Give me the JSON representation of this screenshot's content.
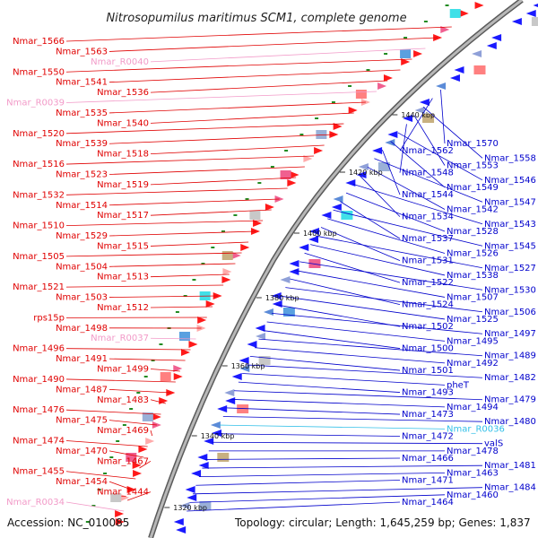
{
  "title": "Nitrosopumilus maritimus SCM1, complete genome",
  "footer": {
    "accession": "Accession: NC_010085",
    "summary": "Topology: circular; Length: 1,645,259 bp; Genes: 1,837"
  },
  "colors": {
    "background": "#ffffff",
    "backbone": "#8c8c8c",
    "backbone_shadow": "#5a5a5a",
    "forward_label": "#e00000",
    "reverse_label": "#0000cc",
    "rna_label_pink": "#f29ac8",
    "rna_label_cyan": "#33c0e8",
    "cds_forward": "#ff1a1a",
    "cds_reverse": "#1a1aff",
    "gc_skew": "#228b22"
  },
  "kbp_ticks": [
    "1320 kbp",
    "1340 kbp",
    "1360 kbp",
    "1380 kbp",
    "1400 kbp",
    "1420 kbp",
    "1440 kbp"
  ],
  "left_labels": [
    {
      "text": "Nmar_1566",
      "kind": "cds"
    },
    {
      "text": "Nmar_1563",
      "kind": "cds"
    },
    {
      "text": "Nmar_R0040",
      "kind": "rna"
    },
    {
      "text": "Nmar_1550",
      "kind": "cds"
    },
    {
      "text": "Nmar_1541",
      "kind": "cds"
    },
    {
      "text": "Nmar_1536",
      "kind": "cds"
    },
    {
      "text": "Nmar_R0039",
      "kind": "rna"
    },
    {
      "text": "Nmar_1535",
      "kind": "cds"
    },
    {
      "text": "Nmar_1540",
      "kind": "cds"
    },
    {
      "text": "Nmar_1520",
      "kind": "cds"
    },
    {
      "text": "Nmar_1539",
      "kind": "cds"
    },
    {
      "text": "Nmar_1518",
      "kind": "cds"
    },
    {
      "text": "Nmar_1516",
      "kind": "cds"
    },
    {
      "text": "Nmar_1523",
      "kind": "cds"
    },
    {
      "text": "Nmar_1519",
      "kind": "cds"
    },
    {
      "text": "Nmar_1532",
      "kind": "cds"
    },
    {
      "text": "Nmar_1514",
      "kind": "cds"
    },
    {
      "text": "Nmar_1517",
      "kind": "cds"
    },
    {
      "text": "Nmar_1510",
      "kind": "cds"
    },
    {
      "text": "Nmar_1529",
      "kind": "cds"
    },
    {
      "text": "Nmar_1515",
      "kind": "cds"
    },
    {
      "text": "Nmar_1505",
      "kind": "cds"
    },
    {
      "text": "Nmar_1504",
      "kind": "cds"
    },
    {
      "text": "Nmar_1513",
      "kind": "cds"
    },
    {
      "text": "Nmar_1521",
      "kind": "cds"
    },
    {
      "text": "Nmar_1503",
      "kind": "cds"
    },
    {
      "text": "Nmar_1512",
      "kind": "cds"
    },
    {
      "text": "rps15p",
      "kind": "cds"
    },
    {
      "text": "Nmar_1498",
      "kind": "cds"
    },
    {
      "text": "Nmar_R0037",
      "kind": "rna"
    },
    {
      "text": "Nmar_1496",
      "kind": "cds"
    },
    {
      "text": "Nmar_1491",
      "kind": "cds"
    },
    {
      "text": "Nmar_1499",
      "kind": "cds"
    },
    {
      "text": "Nmar_1490",
      "kind": "cds"
    },
    {
      "text": "Nmar_1487",
      "kind": "cds"
    },
    {
      "text": "Nmar_1483",
      "kind": "cds"
    },
    {
      "text": "Nmar_1476",
      "kind": "cds"
    },
    {
      "text": "Nmar_1475",
      "kind": "cds"
    },
    {
      "text": "Nmar_1469",
      "kind": "cds"
    },
    {
      "text": "Nmar_1474",
      "kind": "cds"
    },
    {
      "text": "Nmar_1470",
      "kind": "cds"
    },
    {
      "text": "Nmar_1467",
      "kind": "cds"
    },
    {
      "text": "Nmar_1455",
      "kind": "cds"
    },
    {
      "text": "Nmar_1454",
      "kind": "cds"
    },
    {
      "text": "Nmar_1444",
      "kind": "cds"
    },
    {
      "text": "Nmar_R0034",
      "kind": "rna"
    }
  ],
  "right_labels": [
    {
      "text": "Nmar_1570",
      "kind": "cds"
    },
    {
      "text": "Nmar_1562",
      "kind": "cds"
    },
    {
      "text": "Nmar_1558",
      "kind": "cds"
    },
    {
      "text": "Nmar_1553",
      "kind": "cds"
    },
    {
      "text": "Nmar_1548",
      "kind": "cds"
    },
    {
      "text": "Nmar_1546",
      "kind": "cds"
    },
    {
      "text": "Nmar_1549",
      "kind": "cds"
    },
    {
      "text": "Nmar_1544",
      "kind": "cds"
    },
    {
      "text": "Nmar_1547",
      "kind": "cds"
    },
    {
      "text": "Nmar_1542",
      "kind": "cds"
    },
    {
      "text": "Nmar_1534",
      "kind": "cds"
    },
    {
      "text": "Nmar_1543",
      "kind": "cds"
    },
    {
      "text": "Nmar_1528",
      "kind": "cds"
    },
    {
      "text": "Nmar_1537",
      "kind": "cds"
    },
    {
      "text": "Nmar_1545",
      "kind": "cds"
    },
    {
      "text": "Nmar_1526",
      "kind": "cds"
    },
    {
      "text": "Nmar_1531",
      "kind": "cds"
    },
    {
      "text": "Nmar_1527",
      "kind": "cds"
    },
    {
      "text": "Nmar_1538",
      "kind": "cds"
    },
    {
      "text": "Nmar_1522",
      "kind": "cds"
    },
    {
      "text": "Nmar_1530",
      "kind": "cds"
    },
    {
      "text": "Nmar_1507",
      "kind": "cds"
    },
    {
      "text": "Nmar_1524",
      "kind": "cds"
    },
    {
      "text": "Nmar_1506",
      "kind": "cds"
    },
    {
      "text": "Nmar_1525",
      "kind": "cds"
    },
    {
      "text": "Nmar_1502",
      "kind": "cds"
    },
    {
      "text": "Nmar_1497",
      "kind": "cds"
    },
    {
      "text": "Nmar_1495",
      "kind": "cds"
    },
    {
      "text": "Nmar_1500",
      "kind": "cds"
    },
    {
      "text": "Nmar_1489",
      "kind": "cds"
    },
    {
      "text": "Nmar_1492",
      "kind": "cds"
    },
    {
      "text": "Nmar_1501",
      "kind": "cds"
    },
    {
      "text": "Nmar_1482",
      "kind": "cds"
    },
    {
      "text": "pheT",
      "kind": "cds"
    },
    {
      "text": "Nmar_1493",
      "kind": "cds"
    },
    {
      "text": "Nmar_1479",
      "kind": "cds"
    },
    {
      "text": "Nmar_1494",
      "kind": "cds"
    },
    {
      "text": "Nmar_1473",
      "kind": "cds"
    },
    {
      "text": "Nmar_1480",
      "kind": "cds"
    },
    {
      "text": "Nmar_R0036",
      "kind": "rna"
    },
    {
      "text": "Nmar_1472",
      "kind": "cds"
    },
    {
      "text": "valS",
      "kind": "cds"
    },
    {
      "text": "Nmar_1478",
      "kind": "cds"
    },
    {
      "text": "Nmar_1466",
      "kind": "cds"
    },
    {
      "text": "Nmar_1481",
      "kind": "cds"
    },
    {
      "text": "Nmar_1463",
      "kind": "cds"
    },
    {
      "text": "Nmar_1471",
      "kind": "cds"
    },
    {
      "text": "Nmar_1484",
      "kind": "cds"
    },
    {
      "text": "Nmar_1460",
      "kind": "cds"
    },
    {
      "text": "Nmar_1464",
      "kind": "cds"
    }
  ]
}
